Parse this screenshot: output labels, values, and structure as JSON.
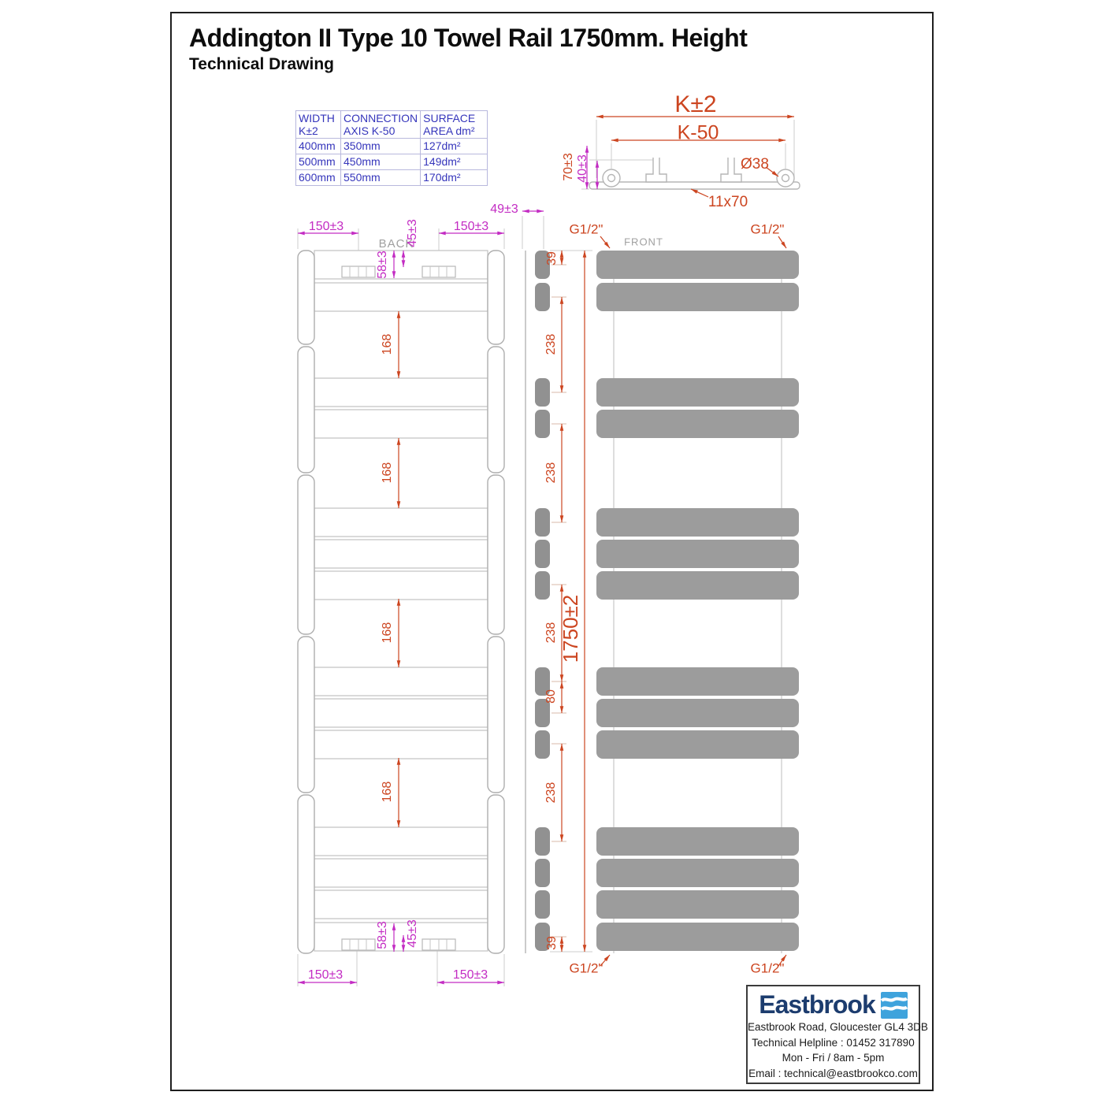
{
  "title": "Addington II Type 10 Towel Rail 1750mm. Height",
  "subtitle": "Technical Drawing",
  "spec_table": {
    "headers": [
      {
        "l1": "WIDTH",
        "l2": "K±2"
      },
      {
        "l1": "CONNECTION",
        "l2": "AXIS K-50"
      },
      {
        "l1": "SURFACE",
        "l2": "AREA dm²"
      }
    ],
    "rows": [
      [
        "400mm",
        "350mm",
        "127dm²"
      ],
      [
        "500mm",
        "450mm",
        "149dm²"
      ],
      [
        "600mm",
        "550mm",
        "170dm²"
      ]
    ]
  },
  "views": {
    "back_label": "BACK",
    "front_label": "FRONT"
  },
  "dims": {
    "k2": "K±2",
    "k50": "K-50",
    "d38": "Ø38",
    "tube_profile": "11x70",
    "d70": "70±3",
    "d40": "40±3",
    "w150": "150±3",
    "d45": "45±3",
    "d58": "58±3",
    "g168": "168",
    "d49": "49±3",
    "d39": "39",
    "g238": "238",
    "p80": "80",
    "total": "1750±2",
    "conn": "G1/2\""
  },
  "drawing": {
    "tube_groups": [
      2,
      2,
      3,
      3,
      4
    ]
  },
  "footer": {
    "brand": "Eastbrook",
    "address": "Eastbrook Road, Gloucester GL4 3DB",
    "helpline": "Technical Helpline : 01452 317890",
    "hours": "Mon - Fri / 8am - 5pm",
    "email": "Email : technical@eastbrookco.com"
  },
  "colors": {
    "dim_magenta": "#c32cc3",
    "dim_orange": "#cc4520",
    "line_gray": "#c2c2c2",
    "bar_gray": "#9c9c9c",
    "side_tube_gray": "#919191",
    "table_blue": "#3535bb",
    "brand_navy": "#1c3c6e",
    "brand_blue": "#3fa3dc"
  }
}
